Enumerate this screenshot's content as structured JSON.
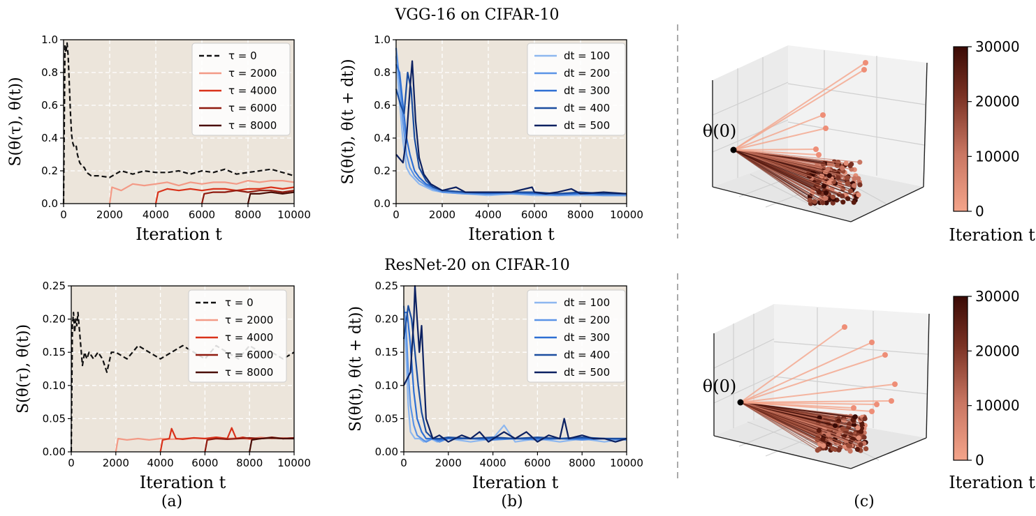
{
  "figure": {
    "title_top": "VGG-16 on CIFAR-10",
    "title_bottom": "ResNet-20 on CIFAR-10",
    "panel_labels": [
      "(a)",
      "(b)",
      "(c)"
    ],
    "theta0_label": "θ(0)",
    "colorbar": {
      "ticks": [
        "30000",
        "20000",
        "10000",
        "0"
      ],
      "label": "Iteration t",
      "color_low": "#f4a48a",
      "color_high": "#3a0a05"
    }
  },
  "colors": {
    "panel_bg": "#ece5db",
    "tau": [
      "#111111",
      "#f39a86",
      "#d9321a",
      "#8f1a0f",
      "#4a0d06"
    ],
    "dt": [
      "#8db7ef",
      "#5a93e6",
      "#2e6fd3",
      "#1b4d9f",
      "#0c2161"
    ]
  },
  "chart_data": [
    {
      "id": "vgg-a",
      "type": "line",
      "xlabel": "Iteration t",
      "ylabel": "S(θ(τ), θ(t))",
      "xlim": [
        0,
        10000
      ],
      "ylim": [
        0,
        1.0
      ],
      "xticks": [
        "0",
        "2000",
        "4000",
        "6000",
        "8000",
        "10000"
      ],
      "yticks": [
        "0.0",
        "0.2",
        "0.4",
        "0.6",
        "0.8",
        "1.0"
      ],
      "legend": [
        "τ = 0",
        "τ = 2000",
        "τ = 4000",
        "τ = 6000",
        "τ = 8000"
      ],
      "series": [
        {
          "name": "τ = 0",
          "style": "dashed",
          "start": 0,
          "x": [
            0,
            60,
            100,
            150,
            200,
            250,
            300,
            350,
            400,
            450,
            500,
            550,
            600,
            700,
            800,
            900,
            1000,
            1200,
            1500,
            2000,
            2500,
            3000,
            3500,
            4000,
            4500,
            5000,
            5500,
            6000,
            6500,
            7000,
            7500,
            8000,
            8500,
            9000,
            9500,
            10000
          ],
          "y": [
            0.0,
            0.97,
            0.92,
            0.98,
            0.9,
            0.72,
            0.55,
            0.42,
            0.37,
            0.35,
            0.34,
            0.35,
            0.3,
            0.25,
            0.23,
            0.22,
            0.19,
            0.17,
            0.17,
            0.16,
            0.2,
            0.18,
            0.2,
            0.19,
            0.19,
            0.2,
            0.18,
            0.2,
            0.19,
            0.21,
            0.18,
            0.19,
            0.2,
            0.21,
            0.19,
            0.17
          ]
        },
        {
          "name": "τ = 2000",
          "style": "solid",
          "start": 2000,
          "x": [
            2000,
            2100,
            2500,
            3000,
            3500,
            4000,
            4500,
            5000,
            5500,
            6000,
            6500,
            7000,
            7500,
            8000,
            8500,
            9000,
            9500,
            10000
          ],
          "y": [
            0.0,
            0.1,
            0.08,
            0.12,
            0.11,
            0.12,
            0.13,
            0.11,
            0.13,
            0.12,
            0.13,
            0.13,
            0.12,
            0.14,
            0.13,
            0.14,
            0.14,
            0.13
          ]
        },
        {
          "name": "τ = 4000",
          "style": "solid",
          "start": 4000,
          "x": [
            4000,
            4100,
            4500,
            5000,
            5500,
            6000,
            6500,
            7000,
            7500,
            8000,
            8500,
            9000,
            9500,
            10000
          ],
          "y": [
            0.0,
            0.07,
            0.09,
            0.08,
            0.09,
            0.08,
            0.09,
            0.09,
            0.08,
            0.09,
            0.09,
            0.1,
            0.09,
            0.1
          ]
        },
        {
          "name": "τ = 6000",
          "style": "solid",
          "start": 6000,
          "x": [
            6000,
            6100,
            6500,
            7000,
            7500,
            8000,
            8500,
            9000,
            9500,
            10000
          ],
          "y": [
            0.0,
            0.06,
            0.07,
            0.07,
            0.08,
            0.07,
            0.08,
            0.08,
            0.07,
            0.08
          ]
        },
        {
          "name": "τ = 8000",
          "style": "solid",
          "start": 8000,
          "x": [
            8000,
            8100,
            8500,
            9000,
            9500,
            10000
          ],
          "y": [
            0.0,
            0.06,
            0.06,
            0.07,
            0.06,
            0.07
          ]
        }
      ]
    },
    {
      "id": "vgg-b",
      "type": "line",
      "xlabel": "Iteration t",
      "ylabel": "S(θ(t), θ(t + dt))",
      "xlim": [
        0,
        10000
      ],
      "ylim": [
        0,
        1.0
      ],
      "xticks": [
        "0",
        "2000",
        "4000",
        "6000",
        "8000",
        "10000"
      ],
      "yticks": [
        "0.0",
        "0.2",
        "0.4",
        "0.6",
        "0.8",
        "1.0"
      ],
      "legend": [
        "dt = 100",
        "dt = 200",
        "dt = 300",
        "dt = 400",
        "dt = 500"
      ],
      "series": [
        {
          "name": "dt = 100",
          "x": [
            0,
            150,
            300,
            450,
            600,
            800,
            1000,
            1300,
            1600,
            2000,
            3000,
            4000,
            5000,
            6000,
            7000,
            8000,
            9000,
            10000
          ],
          "y": [
            0.9,
            0.62,
            0.38,
            0.22,
            0.18,
            0.15,
            0.12,
            0.1,
            0.08,
            0.07,
            0.06,
            0.05,
            0.06,
            0.05,
            0.05,
            0.05,
            0.05,
            0.05
          ]
        },
        {
          "name": "dt = 200",
          "x": [
            0,
            150,
            300,
            450,
            600,
            800,
            1000,
            1300,
            1600,
            2000,
            3000,
            4000,
            5000,
            6000,
            7000,
            8000,
            9000,
            10000
          ],
          "y": [
            0.95,
            0.75,
            0.5,
            0.3,
            0.22,
            0.17,
            0.14,
            0.11,
            0.09,
            0.07,
            0.06,
            0.06,
            0.06,
            0.06,
            0.05,
            0.06,
            0.05,
            0.05
          ]
        },
        {
          "name": "dt = 300",
          "x": [
            0,
            150,
            300,
            450,
            600,
            800,
            1000,
            1300,
            1600,
            2000,
            3000,
            4000,
            5000,
            6000,
            7000,
            8000,
            9000,
            10000
          ],
          "y": [
            0.85,
            0.8,
            0.6,
            0.4,
            0.3,
            0.2,
            0.16,
            0.12,
            0.1,
            0.08,
            0.07,
            0.06,
            0.07,
            0.06,
            0.06,
            0.06,
            0.06,
            0.06
          ]
        },
        {
          "name": "dt = 400",
          "x": [
            0,
            200,
            350,
            500,
            650,
            800,
            1000,
            1300,
            1600,
            2000,
            3000,
            4000,
            5000,
            6000,
            7000,
            8000,
            9000,
            10000
          ],
          "y": [
            0.7,
            0.6,
            0.55,
            0.8,
            0.7,
            0.4,
            0.22,
            0.14,
            0.1,
            0.08,
            0.07,
            0.07,
            0.07,
            0.07,
            0.06,
            0.07,
            0.06,
            0.06
          ]
        },
        {
          "name": "dt = 500",
          "x": [
            0,
            300,
            450,
            600,
            700,
            850,
            1000,
            1200,
            1500,
            2000,
            2600,
            3000,
            4000,
            5000,
            5900,
            6000,
            6500,
            7000,
            7600,
            8000,
            9000,
            10000
          ],
          "y": [
            0.3,
            0.25,
            0.4,
            0.7,
            0.87,
            0.5,
            0.28,
            0.18,
            0.12,
            0.08,
            0.1,
            0.07,
            0.07,
            0.07,
            0.1,
            0.07,
            0.06,
            0.07,
            0.09,
            0.06,
            0.07,
            0.06
          ]
        }
      ]
    },
    {
      "id": "resnet-a",
      "type": "line",
      "xlabel": "Iteration t",
      "ylabel": "S(θ(τ), θ(t))",
      "xlim": [
        0,
        10000
      ],
      "ylim": [
        0,
        0.25
      ],
      "xticks": [
        "0",
        "2000",
        "4000",
        "6000",
        "8000",
        "10000"
      ],
      "yticks": [
        "0.00",
        "0.05",
        "0.10",
        "0.15",
        "0.20",
        "0.25"
      ],
      "legend": [
        "τ = 0",
        "τ = 2000",
        "τ = 4000",
        "τ = 6000",
        "τ = 8000"
      ],
      "series": [
        {
          "name": "τ = 0",
          "style": "dashed",
          "start": 0,
          "x": [
            0,
            50,
            100,
            150,
            200,
            250,
            300,
            400,
            500,
            600,
            700,
            800,
            1000,
            1200,
            1400,
            1600,
            1800,
            2000,
            2500,
            3000,
            3500,
            4000,
            4500,
            5000,
            5500,
            6000,
            6500,
            7000,
            7500,
            8000,
            8500,
            9000,
            9500,
            10000
          ],
          "y": [
            0.0,
            0.19,
            0.21,
            0.18,
            0.2,
            0.19,
            0.21,
            0.17,
            0.13,
            0.15,
            0.14,
            0.15,
            0.14,
            0.15,
            0.14,
            0.12,
            0.15,
            0.15,
            0.14,
            0.16,
            0.15,
            0.14,
            0.15,
            0.16,
            0.15,
            0.14,
            0.16,
            0.15,
            0.14,
            0.16,
            0.15,
            0.15,
            0.14,
            0.15
          ]
        },
        {
          "name": "τ = 2000",
          "style": "solid",
          "start": 2000,
          "x": [
            2000,
            2100,
            2500,
            3000,
            3500,
            4000,
            4500,
            5000,
            5500,
            6000,
            6500,
            7000,
            7500,
            8000,
            8500,
            9000,
            9500,
            10000
          ],
          "y": [
            0.0,
            0.02,
            0.018,
            0.02,
            0.018,
            0.02,
            0.019,
            0.02,
            0.021,
            0.02,
            0.022,
            0.02,
            0.021,
            0.019,
            0.022,
            0.02,
            0.021,
            0.02
          ]
        },
        {
          "name": "τ = 4000",
          "style": "solid",
          "start": 4000,
          "x": [
            4000,
            4100,
            4400,
            4500,
            4700,
            5000,
            5500,
            6000,
            6500,
            7000,
            7200,
            7400,
            7700,
            8000,
            8500,
            9000,
            9500,
            10000
          ],
          "y": [
            0.0,
            0.018,
            0.02,
            0.035,
            0.02,
            0.019,
            0.021,
            0.02,
            0.022,
            0.02,
            0.036,
            0.02,
            0.022,
            0.02,
            0.02,
            0.021,
            0.02,
            0.021
          ]
        },
        {
          "name": "τ = 6000",
          "style": "solid",
          "start": 6000,
          "x": [
            6000,
            6100,
            6500,
            7000,
            7500,
            8000,
            8500,
            9000,
            9500,
            10000
          ],
          "y": [
            0.0,
            0.018,
            0.02,
            0.019,
            0.02,
            0.021,
            0.02,
            0.022,
            0.02,
            0.021
          ]
        },
        {
          "name": "τ = 8000",
          "style": "solid",
          "start": 8000,
          "x": [
            8000,
            8100,
            8500,
            9000,
            9500,
            10000
          ],
          "y": [
            0.0,
            0.018,
            0.02,
            0.021,
            0.02,
            0.02
          ]
        }
      ]
    },
    {
      "id": "resnet-b",
      "type": "line",
      "xlabel": "Iteration t",
      "ylabel": "S(θ(t), θ(t + dt))",
      "xlim": [
        0,
        10000
      ],
      "ylim": [
        0,
        0.25
      ],
      "xticks": [
        "0",
        "2000",
        "4000",
        "6000",
        "8000",
        "10000"
      ],
      "yticks": [
        "0.00",
        "0.05",
        "0.10",
        "0.15",
        "0.20",
        "0.25"
      ],
      "legend": [
        "dt = 100",
        "dt = 200",
        "dt = 300",
        "dt = 400",
        "dt = 500"
      ],
      "series": [
        {
          "name": "dt = 100",
          "x": [
            0,
            100,
            200,
            300,
            500,
            700,
            900,
            1200,
            1500,
            2000,
            3000,
            4000,
            4500,
            5000,
            6000,
            7000,
            8000,
            9000,
            10000
          ],
          "y": [
            0.2,
            0.15,
            0.07,
            0.03,
            0.02,
            0.02,
            0.015,
            0.02,
            0.015,
            0.02,
            0.015,
            0.02,
            0.04,
            0.015,
            0.02,
            0.015,
            0.02,
            0.015,
            0.02
          ]
        },
        {
          "name": "dt = 200",
          "x": [
            0,
            100,
            200,
            300,
            450,
            600,
            800,
            1000,
            1300,
            1600,
            2000,
            3000,
            4000,
            5000,
            6000,
            7000,
            8000,
            9000,
            10000
          ],
          "y": [
            0.22,
            0.19,
            0.12,
            0.07,
            0.04,
            0.025,
            0.02,
            0.015,
            0.02,
            0.015,
            0.02,
            0.02,
            0.018,
            0.02,
            0.018,
            0.02,
            0.018,
            0.02,
            0.018
          ]
        },
        {
          "name": "dt = 300",
          "x": [
            0,
            150,
            300,
            450,
            600,
            800,
            1000,
            1300,
            1600,
            2000,
            3000,
            4000,
            5000,
            6000,
            7000,
            8000,
            9000,
            10000
          ],
          "y": [
            0.21,
            0.21,
            0.16,
            0.09,
            0.05,
            0.03,
            0.02,
            0.02,
            0.018,
            0.02,
            0.02,
            0.02,
            0.02,
            0.02,
            0.02,
            0.02,
            0.02,
            0.02
          ]
        },
        {
          "name": "dt = 400",
          "x": [
            0,
            200,
            350,
            500,
            650,
            800,
            1000,
            1300,
            1600,
            2000,
            3000,
            4000,
            5000,
            6000,
            7000,
            8000,
            9000,
            10000
          ],
          "y": [
            0.17,
            0.22,
            0.2,
            0.15,
            0.1,
            0.06,
            0.03,
            0.02,
            0.02,
            0.022,
            0.02,
            0.022,
            0.02,
            0.022,
            0.02,
            0.022,
            0.02,
            0.02
          ]
        },
        {
          "name": "dt = 500",
          "x": [
            0,
            300,
            450,
            500,
            600,
            700,
            800,
            900,
            1000,
            1300,
            1600,
            2000,
            2600,
            3000,
            3400,
            3800,
            4500,
            5000,
            5500,
            6000,
            6500,
            7000,
            7200,
            7400,
            8000,
            8500,
            9000,
            9500,
            10000
          ],
          "y": [
            0.1,
            0.12,
            0.2,
            0.25,
            0.2,
            0.15,
            0.19,
            0.12,
            0.05,
            0.02,
            0.025,
            0.015,
            0.025,
            0.02,
            0.03,
            0.015,
            0.03,
            0.02,
            0.03,
            0.015,
            0.025,
            0.02,
            0.05,
            0.02,
            0.025,
            0.02,
            0.02,
            0.015,
            0.02
          ]
        }
      ]
    }
  ]
}
